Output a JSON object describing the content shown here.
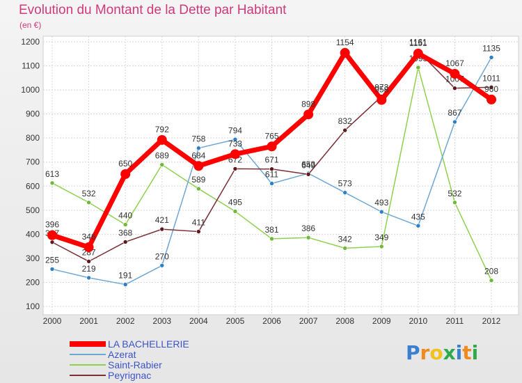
{
  "chart_data": {
    "type": "line",
    "title": "Evolution du Montant de la Dette par Habitant",
    "subtitle": "(en €)",
    "xlabel": "",
    "ylabel": "",
    "ylim": [
      100,
      1200
    ],
    "y_ticks": [
      100,
      200,
      300,
      400,
      500,
      600,
      700,
      800,
      900,
      1000,
      1100,
      1200
    ],
    "categories": [
      "2000",
      "2001",
      "2002",
      "2003",
      "2004",
      "2005",
      "2006",
      "2007",
      "2008",
      "2009",
      "2010",
      "2011",
      "2012"
    ],
    "grid": true,
    "legend_position": "bottom-left",
    "series": [
      {
        "name": "Saint-Rabier",
        "color": "#8fd14f",
        "dot": "#6fb83a",
        "values": [
          613,
          532,
          440,
          689,
          589,
          495,
          381,
          386,
          342,
          349,
          1093,
          532,
          208
        ]
      },
      {
        "name": "Azerat",
        "color": "#6fa6d6",
        "dot": "#2f7fc4",
        "values": [
          255,
          219,
          191,
          270,
          758,
          794,
          611,
          653,
          573,
          493,
          435,
          867,
          1135
        ]
      },
      {
        "name": "Peyrignac",
        "color": "#7a2f35",
        "dot": "#5c1a1f",
        "values": [
          367,
          287,
          368,
          421,
          411,
          672,
          671,
          649,
          832,
          973,
          1161,
          1007,
          1011
        ]
      },
      {
        "name": "LA BACHELLERIE",
        "color": "#ff0000",
        "dot": "#ff0000",
        "values": [
          396,
          346,
          650,
          792,
          684,
          733,
          765,
          898,
          1154,
          958,
          1151,
          1067,
          960
        ]
      }
    ]
  },
  "legend": {
    "items": [
      "LA BACHELLERIE",
      "Azerat",
      "Saint-Rabier",
      "Peyrignac"
    ]
  },
  "logo": {
    "text": "Proxiti",
    "letters": [
      "P",
      "r",
      "o",
      "x",
      "i",
      "t",
      "i"
    ],
    "colors": [
      "#3b7fd0",
      "#f08a1c",
      "#f2c21c",
      "#2faa4a",
      "#3b7fd0",
      "#f08a1c",
      "#2faa4a"
    ]
  }
}
